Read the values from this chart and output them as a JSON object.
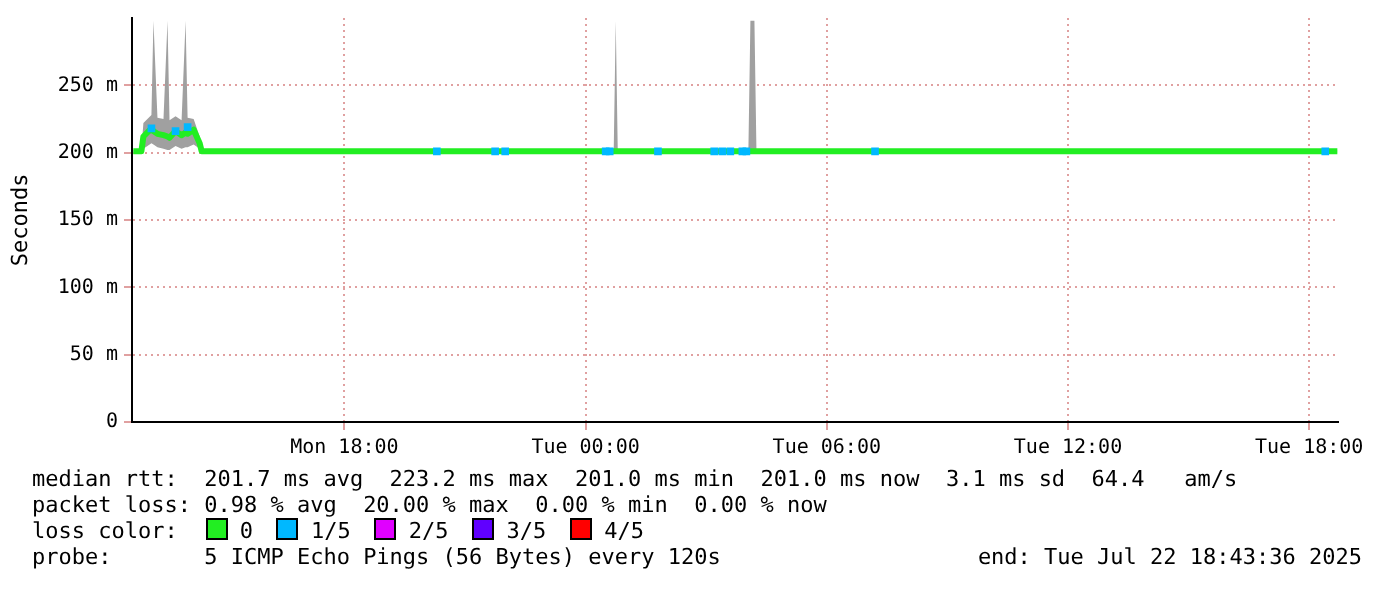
{
  "chart_data": {
    "type": "line",
    "ylabel": "Seconds",
    "legend_title": "loss color:",
    "legend": "bottom",
    "grid": true,
    "marker": "none",
    "line_style": "solid",
    "xlim": [
      "2025-07-21T12:43",
      "2025-07-22T18:43"
    ],
    "xticks": [
      {
        "value": "2025-07-21T18:00",
        "label": "Mon 18:00"
      },
      {
        "value": "2025-07-22T00:00",
        "label": "Tue 00:00"
      },
      {
        "value": "2025-07-22T06:00",
        "label": "Tue 06:00"
      },
      {
        "value": "2025-07-22T12:00",
        "label": "Tue 12:00"
      },
      {
        "value": "2025-07-22T18:00",
        "label": "Tue 18:00"
      }
    ],
    "ylim": [
      0,
      300
    ],
    "yticks": [
      {
        "value": 0,
        "label": "0"
      },
      {
        "value": 50,
        "label": "50 m"
      },
      {
        "value": 100,
        "label": "100 m"
      },
      {
        "value": 150,
        "label": "150 m"
      },
      {
        "value": 200,
        "label": "200 m"
      },
      {
        "value": 250,
        "label": "250 m"
      }
    ],
    "series": [
      {
        "name": "0",
        "color": "#22ee22",
        "x": [
          "2025-07-21T12:45",
          "2025-07-21T12:57",
          "2025-07-21T13:00",
          "2025-07-21T13:12",
          "2025-07-21T13:15",
          "2025-07-21T13:21",
          "2025-07-21T13:30",
          "2025-07-21T13:36",
          "2025-07-21T13:39",
          "2025-07-21T13:48",
          "2025-07-21T13:57",
          "2025-07-21T14:03",
          "2025-07-21T14:06",
          "2025-07-21T14:15",
          "2025-07-21T14:24",
          "2025-07-21T14:27",
          "2025-07-21T16:00",
          "2025-07-21T20:00",
          "2025-07-22T00:00",
          "2025-07-22T00:42",
          "2025-07-22T00:45",
          "2025-07-22T00:48",
          "2025-07-22T02:00",
          "2025-07-22T04:03",
          "2025-07-22T04:06",
          "2025-07-22T04:12",
          "2025-07-22T04:15",
          "2025-07-22T06:00",
          "2025-07-22T10:00",
          "2025-07-22T14:00",
          "2025-07-22T18:42"
        ],
        "values": [
          201,
          201,
          212,
          218,
          216,
          214,
          213,
          212,
          211,
          216,
          213,
          215,
          214,
          217,
          207,
          201,
          201,
          201,
          201,
          201,
          201,
          201,
          201,
          201,
          201,
          201,
          201,
          201,
          201,
          201,
          201
        ],
        "lower": [
          200,
          200,
          203,
          207,
          206,
          204,
          203,
          202,
          202,
          205,
          203,
          204,
          204,
          206,
          203,
          200,
          200,
          200,
          200,
          200,
          200,
          200,
          200,
          200,
          200,
          200,
          200,
          200,
          200,
          200,
          200
        ],
        "upper": [
          202,
          202,
          222,
          228,
          298,
          226,
          225,
          298,
          224,
          227,
          224,
          298,
          226,
          225,
          212,
          202,
          202,
          202,
          202,
          202,
          298,
          202,
          202,
          202,
          298,
          298,
          202,
          202,
          202,
          202,
          202
        ]
      },
      {
        "name": "1/5",
        "type": "scatter",
        "marker": "square",
        "color": "#00b8ff",
        "x": [
          "2025-07-21T13:12",
          "2025-07-21T13:48",
          "2025-07-21T14:06",
          "2025-07-21T20:18",
          "2025-07-21T21:45",
          "2025-07-21T22:00",
          "2025-07-22T00:30",
          "2025-07-22T00:36",
          "2025-07-22T01:48",
          "2025-07-22T03:12",
          "2025-07-22T03:24",
          "2025-07-22T03:36",
          "2025-07-22T03:54",
          "2025-07-22T04:00",
          "2025-07-22T07:12",
          "2025-07-22T18:24"
        ],
        "values": [
          218,
          216,
          219,
          201,
          201,
          201,
          201,
          201,
          201,
          201,
          201,
          201,
          201,
          201,
          201,
          201
        ]
      },
      {
        "name": "2/5",
        "type": "scatter",
        "marker": "square",
        "color": "#e000ff"
      },
      {
        "name": "3/5",
        "type": "scatter",
        "marker": "square",
        "color": "#6000ff"
      },
      {
        "name": "4/5",
        "type": "scatter",
        "marker": "square",
        "color": "#ff0000"
      }
    ],
    "annotations": [
      "median rtt:  201.7 ms avg  223.2 ms max  201.0 ms min  201.0 ms now  3.1 ms sd  64.4   am/s",
      "packet loss: 0.98 % avg  20.00 % max  0.00 % min  0.00 % now",
      "probe:       5 ICMP Echo Pings (56 Bytes) every 120s",
      "end: Tue Jul 22 18:43:36 2025"
    ]
  }
}
